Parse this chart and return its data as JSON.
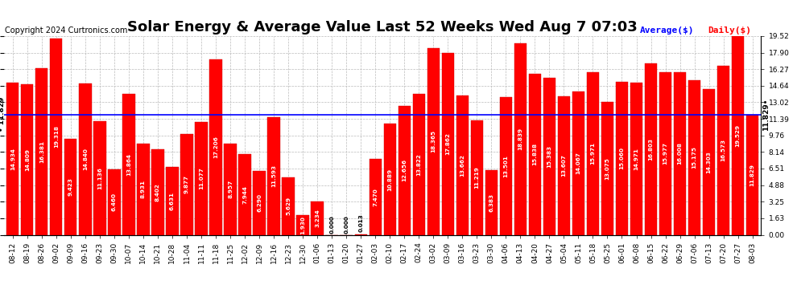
{
  "title": "Solar Energy & Average Value Last 52 Weeks Wed Aug 7 07:03",
  "copyright": "Copyright 2024 Curtronics.com",
  "legend_average": "Average($)",
  "legend_daily": "Daily($)",
  "average_value": 11.829,
  "categories": [
    "08-12",
    "08-19",
    "08-26",
    "09-02",
    "09-09",
    "09-16",
    "09-23",
    "09-30",
    "10-07",
    "10-14",
    "10-21",
    "10-28",
    "11-04",
    "11-11",
    "11-18",
    "11-25",
    "12-02",
    "12-09",
    "12-16",
    "12-23",
    "12-30",
    "01-06",
    "01-13",
    "01-20",
    "01-27",
    "02-03",
    "02-10",
    "02-17",
    "02-24",
    "03-02",
    "03-09",
    "03-16",
    "03-23",
    "03-30",
    "04-06",
    "04-13",
    "04-20",
    "04-27",
    "05-04",
    "05-11",
    "05-18",
    "05-25",
    "06-01",
    "06-08",
    "06-15",
    "06-22",
    "06-29",
    "07-06",
    "07-13",
    "07-20",
    "07-27",
    "08-03"
  ],
  "values": [
    14.934,
    14.809,
    16.381,
    19.318,
    9.423,
    14.84,
    11.136,
    6.46,
    13.864,
    8.931,
    8.402,
    6.631,
    9.877,
    11.077,
    17.206,
    8.957,
    7.944,
    6.29,
    11.593,
    5.629,
    1.93,
    3.234,
    0.0,
    0.0,
    0.013,
    7.47,
    10.889,
    12.656,
    13.822,
    18.365,
    17.862,
    13.662,
    11.219,
    6.383,
    13.501,
    18.839,
    15.838,
    15.383,
    13.607,
    14.067,
    15.971,
    13.075,
    15.06,
    14.971,
    16.803,
    15.977,
    16.008,
    15.175,
    14.303,
    16.573,
    19.529,
    11.829
  ],
  "bar_color": "#ff0000",
  "bar_edge_color": "#cc0000",
  "average_line_color": "#0000ff",
  "background_color": "#ffffff",
  "grid_color": "#bbbbbb",
  "ylim_max": 19.52,
  "yticks": [
    0.0,
    1.63,
    3.25,
    4.88,
    6.51,
    8.14,
    9.76,
    11.39,
    13.02,
    14.64,
    16.27,
    17.9,
    19.52
  ],
  "title_fontsize": 13,
  "tick_fontsize": 6.5,
  "value_fontsize": 5.2,
  "copyright_fontsize": 7,
  "avg_label_fontsize": 6.5
}
